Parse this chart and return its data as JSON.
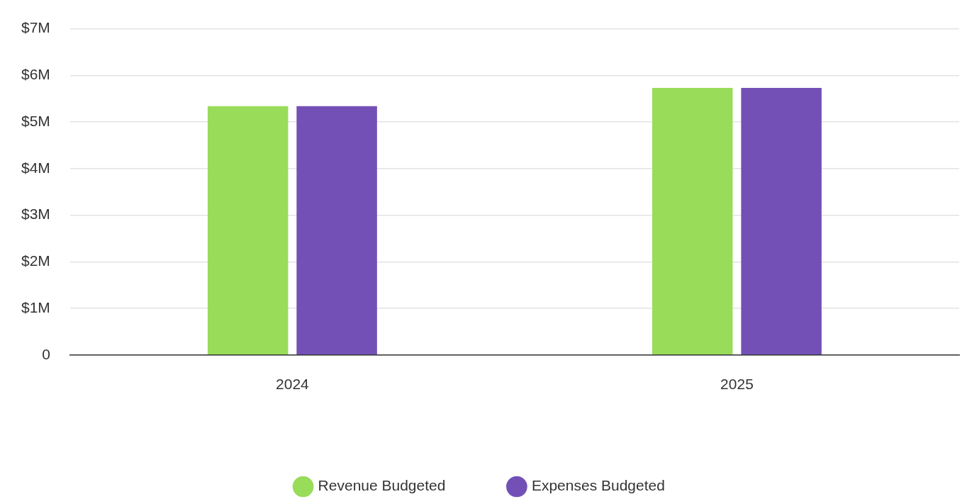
{
  "chart_data": {
    "type": "bar",
    "categories": [
      "2024",
      "2025"
    ],
    "series": [
      {
        "name": "Revenue Budgeted",
        "color": "#98dc5a",
        "values": [
          5.34,
          5.73
        ]
      },
      {
        "name": "Expenses Budgeted",
        "color": "#7350b6",
        "values": [
          5.34,
          5.73
        ]
      }
    ],
    "ylim": [
      0,
      7
    ],
    "yticks": [
      {
        "value": 0,
        "label": "0"
      },
      {
        "value": 1,
        "label": "$1M"
      },
      {
        "value": 2,
        "label": "$2M"
      },
      {
        "value": 3,
        "label": "$3M"
      },
      {
        "value": 4,
        "label": "$4M"
      },
      {
        "value": 5,
        "label": "$5M"
      },
      {
        "value": 6,
        "label": "$6M"
      },
      {
        "value": 7,
        "label": "$7M"
      }
    ],
    "grid": "y",
    "legend": "bottom"
  }
}
